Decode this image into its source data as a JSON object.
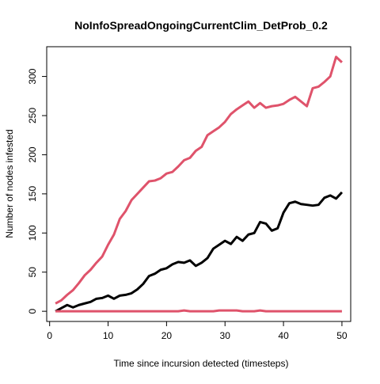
{
  "chart_data": {
    "type": "line",
    "title": "NoInfoSpreadOngoingCurrentClim_DetProb_0.2",
    "xlabel": "Time since incursion detected (timesteps)",
    "ylabel": "Number of nodes infested",
    "xlim": [
      -0.5,
      51.5
    ],
    "ylim": [
      -13,
      338
    ],
    "xticks": [
      0,
      10,
      20,
      30,
      40,
      50
    ],
    "yticks": [
      0,
      50,
      100,
      150,
      200,
      250,
      300
    ],
    "grid": false,
    "legend": "none",
    "x": [
      1,
      2,
      3,
      4,
      5,
      6,
      7,
      8,
      9,
      10,
      11,
      12,
      13,
      14,
      15,
      16,
      17,
      18,
      19,
      20,
      21,
      22,
      23,
      24,
      25,
      26,
      27,
      28,
      29,
      30,
      31,
      32,
      33,
      34,
      35,
      36,
      37,
      38,
      39,
      40,
      41,
      42,
      43,
      44,
      45,
      46,
      47,
      48,
      49,
      50
    ],
    "series": [
      {
        "color": "#df536b",
        "values": [
          10,
          14,
          21,
          27,
          36,
          46,
          53,
          62,
          70,
          85,
          98,
          118,
          128,
          142,
          150,
          158,
          166,
          167,
          170,
          176,
          178,
          185,
          193,
          196,
          205,
          210,
          225,
          230,
          235,
          242,
          252,
          258,
          263,
          268,
          260,
          266,
          260,
          262,
          263,
          265,
          270,
          274,
          268,
          262,
          285,
          287,
          293,
          300,
          325,
          318
        ]
      },
      {
        "color": "#000000",
        "values": [
          0,
          4,
          8,
          5,
          8,
          10,
          12,
          16,
          17,
          20,
          16,
          20,
          21,
          23,
          28,
          35,
          45,
          48,
          53,
          55,
          60,
          63,
          62,
          65,
          58,
          62,
          68,
          80,
          85,
          90,
          86,
          95,
          90,
          98,
          100,
          114,
          112,
          103,
          106,
          126,
          138,
          140,
          137,
          136,
          135,
          136,
          145,
          148,
          144,
          152
        ]
      },
      {
        "color": "#df536b",
        "values": [
          0,
          0,
          0,
          0,
          0,
          0,
          0,
          0,
          0,
          0,
          0,
          0,
          0,
          0,
          0,
          0,
          0,
          0,
          0,
          0,
          0,
          0,
          1,
          0,
          0,
          0,
          0,
          0,
          1,
          1,
          1,
          1,
          0,
          0,
          0,
          1,
          0,
          0,
          0,
          0,
          0,
          0,
          0,
          0,
          0,
          0,
          0,
          0,
          0,
          0
        ]
      }
    ]
  }
}
